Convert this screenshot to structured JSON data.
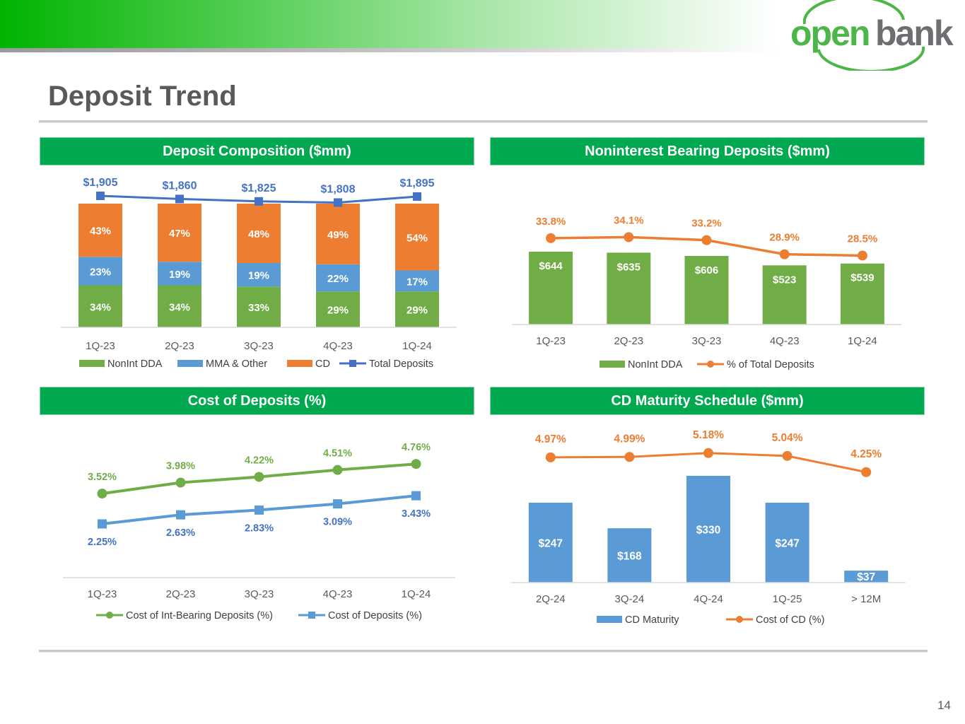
{
  "header": {
    "logo_text_part1": "open",
    "logo_text_part2": "bank",
    "page_title": "Deposit Trend",
    "page_number": "14"
  },
  "colors": {
    "green_header": "#00a94f",
    "series_green": "#70ad47",
    "series_blue": "#5b9bd5",
    "series_orange": "#ed7d31",
    "line_blue": "#4472c4",
    "label_blue": "#4472c4"
  },
  "chart_data": [
    {
      "id": "deposit-composition",
      "title": "Deposit Composition ($mm)",
      "type": "bar",
      "stacked": true,
      "categories": [
        "1Q-23",
        "2Q-23",
        "3Q-23",
        "4Q-23",
        "1Q-24"
      ],
      "series": [
        {
          "name": "NonInt DDA",
          "values": [
            34,
            34,
            33,
            29,
            29
          ],
          "labels": [
            "34%",
            "34%",
            "33%",
            "29%",
            "29%"
          ]
        },
        {
          "name": "MMA & Other",
          "values": [
            23,
            19,
            19,
            22,
            17
          ],
          "labels": [
            "23%",
            "19%",
            "19%",
            "22%",
            "17%"
          ]
        },
        {
          "name": "CD",
          "values": [
            43,
            47,
            48,
            49,
            54
          ],
          "labels": [
            "43%",
            "47%",
            "48%",
            "49%",
            "54%"
          ]
        }
      ],
      "line_series": {
        "name": "Total Deposits",
        "values": [
          1905,
          1860,
          1825,
          1808,
          1895
        ],
        "labels": [
          "$1,905",
          "$1,860",
          "$1,825",
          "$1,808",
          "$1,895"
        ]
      },
      "ylim": [
        0,
        100
      ],
      "line_ylim": [
        0,
        2120
      ],
      "legend": [
        "NonInt DDA",
        "MMA & Other",
        "CD",
        "Total Deposits"
      ]
    },
    {
      "id": "noninterest-bearing",
      "title": "Noninterest Bearing Deposits ($mm)",
      "type": "bar",
      "categories": [
        "1Q-23",
        "2Q-23",
        "3Q-23",
        "4Q-23",
        "1Q-24"
      ],
      "series": [
        {
          "name": "NonInt DDA",
          "values": [
            644,
            635,
            606,
            523,
            539
          ],
          "labels": [
            "$644",
            "$635",
            "$606",
            "$523",
            "$539"
          ]
        }
      ],
      "line_series": {
        "name": "% of Total Deposits",
        "values": [
          33.8,
          34.1,
          33.2,
          28.9,
          28.5
        ],
        "labels": [
          "33.8%",
          "34.1%",
          "33.2%",
          "28.9%",
          "28.5%"
        ]
      },
      "ylim": [
        0,
        900
      ],
      "line_ylim": [
        0,
        42
      ],
      "legend": [
        "NonInt DDA",
        "% of Total Deposits"
      ]
    },
    {
      "id": "cost-of-deposits",
      "title": "Cost of Deposits (%)",
      "type": "line",
      "categories": [
        "1Q-23",
        "2Q-23",
        "3Q-23",
        "4Q-23",
        "1Q-24"
      ],
      "series": [
        {
          "name": "Cost of Int-Bearing Deposits (%)",
          "values": [
            3.52,
            3.98,
            4.22,
            4.51,
            4.76
          ],
          "labels": [
            "3.52%",
            "3.98%",
            "4.22%",
            "4.51%",
            "4.76%"
          ]
        },
        {
          "name": "Cost of Deposits (%)",
          "values": [
            2.25,
            2.63,
            2.83,
            3.09,
            3.43
          ],
          "labels": [
            "2.25%",
            "2.63%",
            "2.83%",
            "3.09%",
            "3.43%"
          ]
        }
      ],
      "ylim": [
        0,
        6.75
      ],
      "legend": [
        "Cost of Int-Bearing Deposits (%)",
        "Cost of Deposits (%)"
      ]
    },
    {
      "id": "cd-maturity",
      "title": "CD Maturity Schedule ($mm)",
      "type": "bar",
      "categories": [
        "2Q-24",
        "3Q-24",
        "4Q-24",
        "1Q-25",
        "> 12M"
      ],
      "series": [
        {
          "name": "CD Maturity",
          "values": [
            247,
            168,
            330,
            247,
            37
          ],
          "labels": [
            "$247",
            "$168",
            "$330",
            "$247",
            "$37"
          ]
        }
      ],
      "line_series": {
        "name": "Cost of CD (%)",
        "values": [
          4.97,
          4.99,
          5.18,
          5.04,
          4.25
        ],
        "labels": [
          "4.97%",
          "4.99%",
          "5.18%",
          "5.04%",
          "4.25%"
        ]
      },
      "ylim": [
        0,
        350
      ],
      "line_ylim": [
        0,
        5.5
      ],
      "legend": [
        "CD Maturity",
        "Cost of CD (%)"
      ]
    }
  ]
}
